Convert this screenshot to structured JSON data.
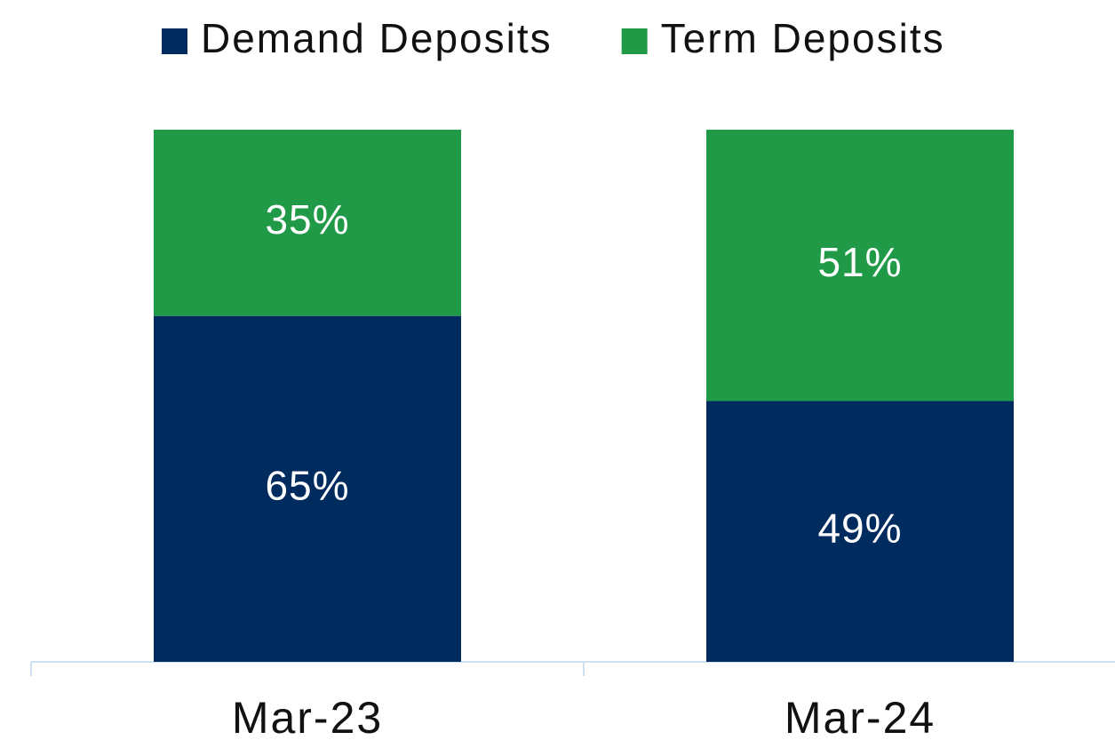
{
  "chart_data": {
    "type": "stacked_bar",
    "categories": [
      "Mar-23",
      "Mar-24"
    ],
    "series": [
      {
        "name": "Demand Deposits",
        "color": "#002b5f",
        "values": [
          65,
          49
        ],
        "value_labels": [
          "65%",
          "49%"
        ]
      },
      {
        "name": "Term Deposits",
        "color": "#219a48",
        "values": [
          35,
          51
        ],
        "value_labels": [
          "35%",
          "51%"
        ]
      }
    ],
    "ylim": [
      0,
      100
    ],
    "legend": "top"
  }
}
